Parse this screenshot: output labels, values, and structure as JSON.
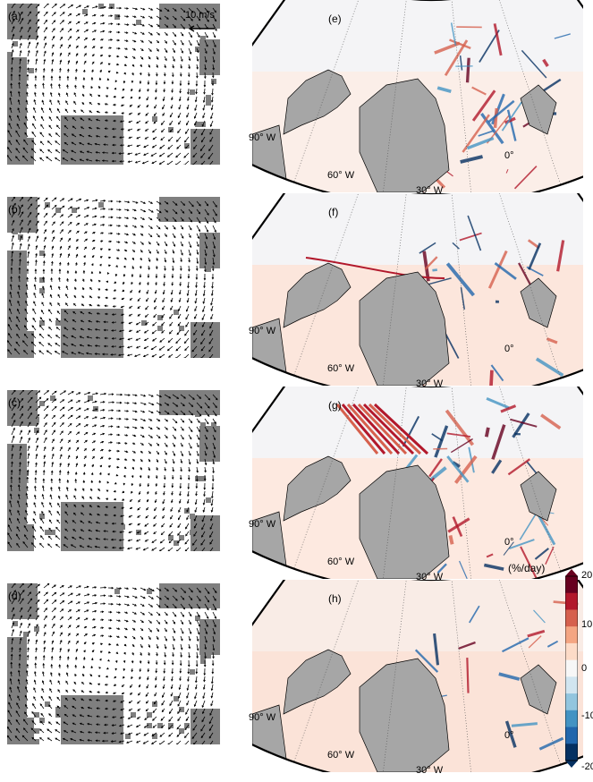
{
  "vector_panels": [
    {
      "label": "(a)"
    },
    {
      "label": "(b)"
    },
    {
      "label": "(c)"
    },
    {
      "label": "(d)"
    }
  ],
  "map_panels": [
    {
      "label": "(e)"
    },
    {
      "label": "(f)"
    },
    {
      "label": "(g)"
    },
    {
      "label": "(h)"
    }
  ],
  "scale_arrow": {
    "label": "10 m/s"
  },
  "longitude_labels": [
    "90° W",
    "60° W",
    "30° W",
    "0°"
  ],
  "colorbar": {
    "units": "(%/day)",
    "ticks": [
      "20",
      "10",
      "0",
      "-10",
      "-20"
    ],
    "colors": [
      "#67001f",
      "#b2182b",
      "#d6604d",
      "#f4a582",
      "#fddbc7",
      "#f7f7f7",
      "#d1e5f0",
      "#92c5de",
      "#4393c3",
      "#2166ac",
      "#053061"
    ]
  },
  "land_color": "#a6a6a6"
}
